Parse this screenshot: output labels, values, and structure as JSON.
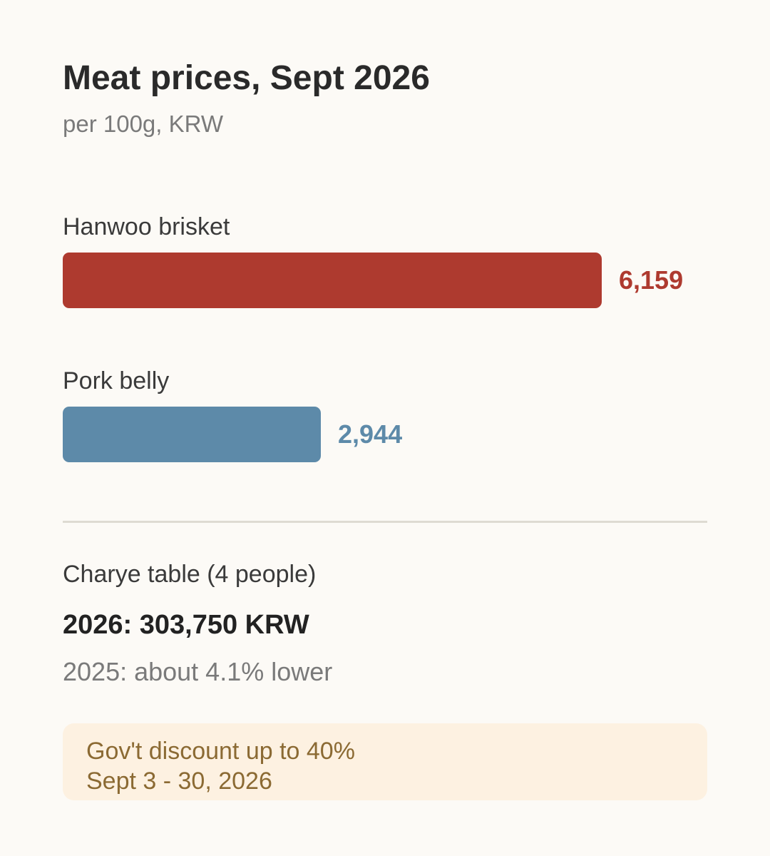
{
  "header": {
    "title": "Meat prices, Sept 2026",
    "subtitle": "per 100g, KRW"
  },
  "chart_data": {
    "type": "bar",
    "orientation": "horizontal",
    "title": "Meat prices, Sept 2026",
    "subtitle": "per 100g, KRW",
    "categories": [
      "Hanwoo brisket",
      "Pork belly"
    ],
    "values": [
      6159,
      2944
    ],
    "value_labels": [
      "6,159",
      "2,944"
    ],
    "colors": [
      "#ae3a2f",
      "#5d8aa9"
    ],
    "xlim": [
      0,
      7360
    ],
    "grid": false,
    "legend": "none"
  },
  "summary": {
    "label": "Charye table (4 people)",
    "total": "2026: 303,750 KRW",
    "comparison": "2025: about 4.1% lower"
  },
  "notice": {
    "line1": "Gov't discount up to 40%",
    "line2": "Sept 3 - 30, 2026",
    "background": "#fdf1e1",
    "text_color": "#8b6a33"
  }
}
